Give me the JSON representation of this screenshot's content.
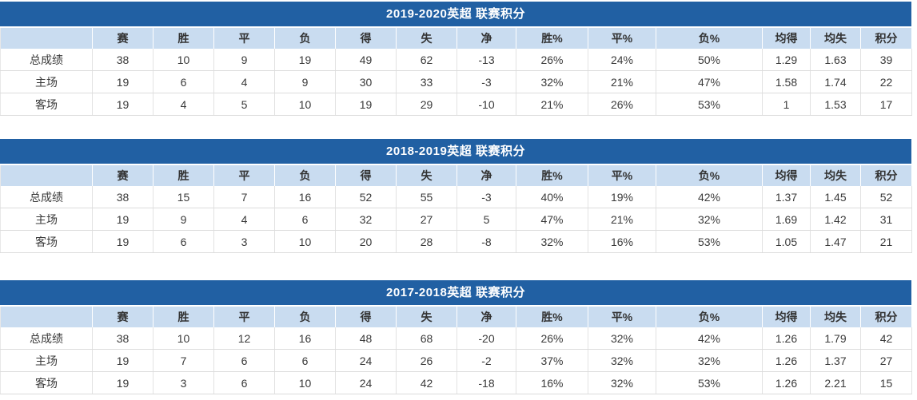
{
  "colors": {
    "title_bar_bg": "#2160A3",
    "title_text": "#FFFFFF",
    "header_row_bg": "#C9DCF0",
    "row_label_bg": "#E4EAF5",
    "win_pct_col_bg": "#F7DCD9",
    "draw_pct_col_bg": "#FAECD4",
    "loss_pct_col_bg": "#E4F2D9",
    "avg_for_col_bg": "#E4F4DC",
    "avg_against_col_bg": "#D8EDEA",
    "points_col_bg": "#FAF8CE",
    "body_text": "#333333"
  },
  "chart_data": [
    {
      "type": "table",
      "title": "2019-2020英超 联赛积分",
      "columns": [
        "",
        "赛",
        "胜",
        "平",
        "负",
        "得",
        "失",
        "净",
        "胜%",
        "平%",
        "负%",
        "均得",
        "均失",
        "积分"
      ],
      "rows": [
        [
          "总成绩",
          "38",
          "10",
          "9",
          "19",
          "49",
          "62",
          "-13",
          "26%",
          "24%",
          "50%",
          "1.29",
          "1.63",
          "39"
        ],
        [
          "主场",
          "19",
          "6",
          "4",
          "9",
          "30",
          "33",
          "-3",
          "32%",
          "21%",
          "47%",
          "1.58",
          "1.74",
          "22"
        ],
        [
          "客场",
          "19",
          "4",
          "5",
          "10",
          "19",
          "29",
          "-10",
          "21%",
          "26%",
          "53%",
          "1",
          "1.53",
          "17"
        ]
      ]
    },
    {
      "type": "table",
      "title": "2018-2019英超 联赛积分",
      "columns": [
        "",
        "赛",
        "胜",
        "平",
        "负",
        "得",
        "失",
        "净",
        "胜%",
        "平%",
        "负%",
        "均得",
        "均失",
        "积分"
      ],
      "rows": [
        [
          "总成绩",
          "38",
          "15",
          "7",
          "16",
          "52",
          "55",
          "-3",
          "40%",
          "19%",
          "42%",
          "1.37",
          "1.45",
          "52"
        ],
        [
          "主场",
          "19",
          "9",
          "4",
          "6",
          "32",
          "27",
          "5",
          "47%",
          "21%",
          "32%",
          "1.69",
          "1.42",
          "31"
        ],
        [
          "客场",
          "19",
          "6",
          "3",
          "10",
          "20",
          "28",
          "-8",
          "32%",
          "16%",
          "53%",
          "1.05",
          "1.47",
          "21"
        ]
      ]
    },
    {
      "type": "table",
      "title": "2017-2018英超 联赛积分",
      "columns": [
        "",
        "赛",
        "胜",
        "平",
        "负",
        "得",
        "失",
        "净",
        "胜%",
        "平%",
        "负%",
        "均得",
        "均失",
        "积分"
      ],
      "rows": [
        [
          "总成绩",
          "38",
          "10",
          "12",
          "16",
          "48",
          "68",
          "-20",
          "26%",
          "32%",
          "42%",
          "1.26",
          "1.79",
          "42"
        ],
        [
          "主场",
          "19",
          "7",
          "6",
          "6",
          "24",
          "26",
          "-2",
          "37%",
          "32%",
          "32%",
          "1.26",
          "1.37",
          "27"
        ],
        [
          "客场",
          "19",
          "3",
          "6",
          "10",
          "24",
          "42",
          "-18",
          "16%",
          "32%",
          "53%",
          "1.26",
          "2.21",
          "15"
        ]
      ]
    }
  ]
}
